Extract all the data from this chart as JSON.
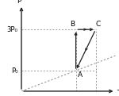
{
  "xlabel": "T",
  "ylabel": "P",
  "bg_color": "#ffffff",
  "points": {
    "A": [
      2.2,
      1.0
    ],
    "B": [
      2.2,
      3.0
    ],
    "C": [
      3.0,
      3.0
    ]
  },
  "y_labels": [
    {
      "text": "3P₀",
      "y": 3.0
    },
    {
      "text": "P₀",
      "y": 1.0
    }
  ],
  "pt_slope": 0.45,
  "arrow_color": "#222222",
  "dot_color": "#999999",
  "axis_color": "#222222",
  "label_fontsize": 6.5,
  "tick_fontsize": 6,
  "xlim": [
    0,
    3.8
  ],
  "ylim": [
    0,
    4.2
  ]
}
